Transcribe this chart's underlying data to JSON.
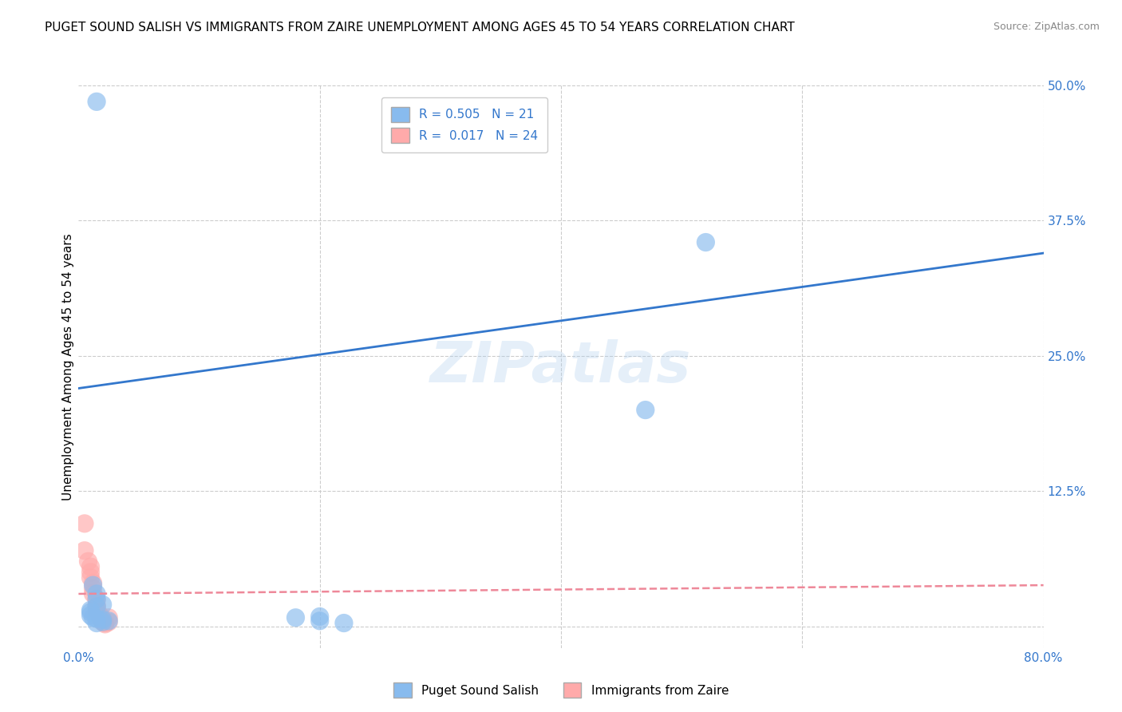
{
  "title": "PUGET SOUND SALISH VS IMMIGRANTS FROM ZAIRE UNEMPLOYMENT AMONG AGES 45 TO 54 YEARS CORRELATION CHART",
  "source": "Source: ZipAtlas.com",
  "ylabel": "Unemployment Among Ages 45 to 54 years",
  "xlim": [
    0.0,
    0.8
  ],
  "ylim": [
    -0.02,
    0.5
  ],
  "ytick_positions": [
    0.0,
    0.125,
    0.25,
    0.375,
    0.5
  ],
  "ytick_labels": [
    "",
    "12.5%",
    "25.0%",
    "37.5%",
    "50.0%"
  ],
  "xtick_positions": [
    0.0,
    0.2,
    0.4,
    0.6,
    0.8
  ],
  "xtick_labels": [
    "0.0%",
    "",
    "",
    "",
    "80.0%"
  ],
  "watermark": "ZIPatlas",
  "blue_R": 0.505,
  "blue_N": 21,
  "pink_R": 0.017,
  "pink_N": 24,
  "blue_color": "#88bbee",
  "pink_color": "#ffaaaa",
  "blue_line_color": "#3377cc",
  "pink_line_color": "#ee8899",
  "grid_color": "#cccccc",
  "blue_scatter": [
    [
      0.015,
      0.485
    ],
    [
      0.012,
      0.038
    ],
    [
      0.015,
      0.03
    ],
    [
      0.015,
      0.025
    ],
    [
      0.02,
      0.02
    ],
    [
      0.015,
      0.018
    ],
    [
      0.01,
      0.015
    ],
    [
      0.01,
      0.013
    ],
    [
      0.01,
      0.01
    ],
    [
      0.012,
      0.008
    ],
    [
      0.015,
      0.007
    ],
    [
      0.02,
      0.006
    ],
    [
      0.025,
      0.005
    ],
    [
      0.02,
      0.004
    ],
    [
      0.015,
      0.003
    ],
    [
      0.18,
      0.008
    ],
    [
      0.2,
      0.009
    ],
    [
      0.2,
      0.005
    ],
    [
      0.22,
      0.003
    ],
    [
      0.47,
      0.2
    ],
    [
      0.52,
      0.355
    ]
  ],
  "pink_scatter": [
    [
      0.005,
      0.095
    ],
    [
      0.005,
      0.07
    ],
    [
      0.008,
      0.06
    ],
    [
      0.01,
      0.055
    ],
    [
      0.01,
      0.05
    ],
    [
      0.01,
      0.045
    ],
    [
      0.012,
      0.04
    ],
    [
      0.012,
      0.035
    ],
    [
      0.012,
      0.03
    ],
    [
      0.015,
      0.025
    ],
    [
      0.015,
      0.02
    ],
    [
      0.015,
      0.018
    ],
    [
      0.015,
      0.015
    ],
    [
      0.015,
      0.012
    ],
    [
      0.018,
      0.01
    ],
    [
      0.018,
      0.008
    ],
    [
      0.02,
      0.007
    ],
    [
      0.02,
      0.006
    ],
    [
      0.02,
      0.005
    ],
    [
      0.02,
      0.004
    ],
    [
      0.022,
      0.003
    ],
    [
      0.022,
      0.002
    ],
    [
      0.025,
      0.008
    ],
    [
      0.025,
      0.004
    ]
  ],
  "blue_line_x": [
    0.0,
    0.8
  ],
  "blue_line_y": [
    0.22,
    0.345
  ],
  "pink_line_x": [
    0.0,
    0.8
  ],
  "pink_line_y": [
    0.03,
    0.038
  ],
  "legend_labels": [
    "Puget Sound Salish",
    "Immigrants from Zaire"
  ],
  "title_fontsize": 11,
  "axis_label_fontsize": 11,
  "tick_fontsize": 11,
  "legend_fontsize": 11,
  "background_color": "#ffffff"
}
